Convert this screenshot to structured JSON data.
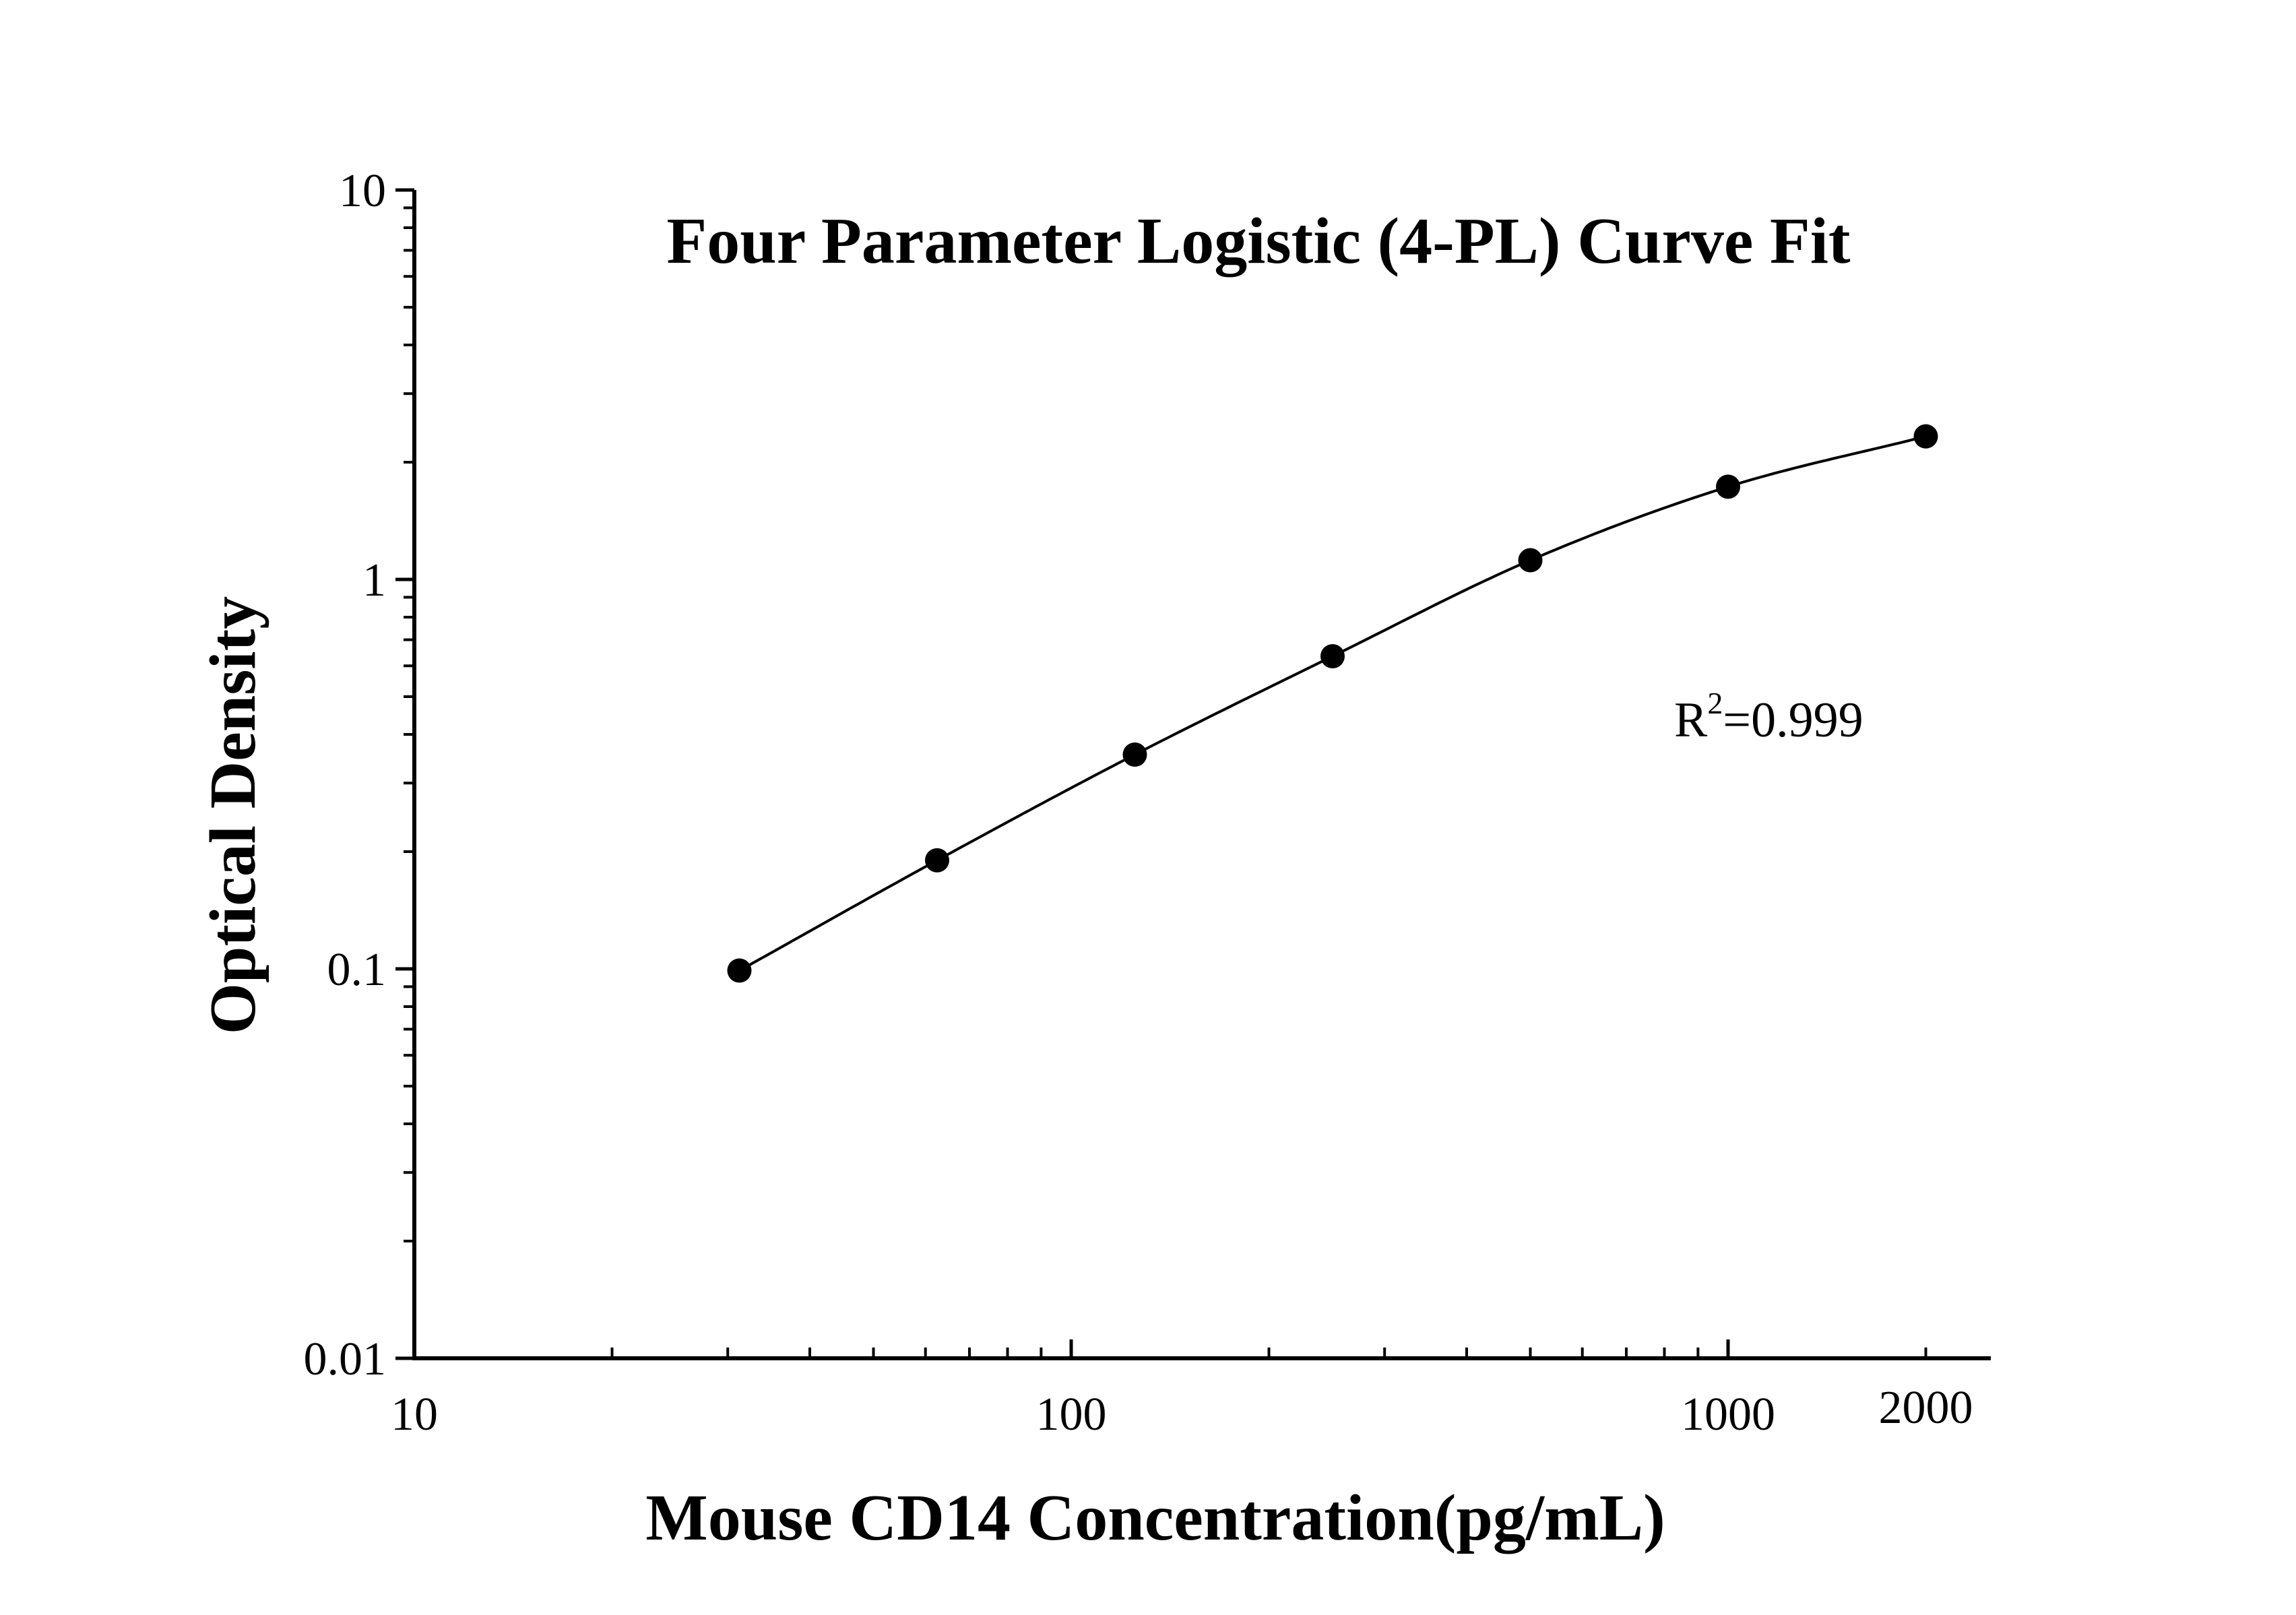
{
  "chart_data": {
    "type": "scatter",
    "title": "Four Parameter Logistic (4-PL) Curve Fit",
    "xlabel": "Mouse CD14 Concentration(pg/mL)",
    "ylabel": "Optical Density",
    "xscale": "log",
    "yscale": "log",
    "xlim": [
      10,
      2400
    ],
    "ylim": [
      0.01,
      10
    ],
    "x_ticks": [
      {
        "value": 10,
        "label": "10"
      },
      {
        "value": 100,
        "label": "100"
      },
      {
        "value": 1000,
        "label": "1000"
      },
      {
        "value": 2000,
        "label": "2000"
      }
    ],
    "y_ticks": [
      {
        "value": 0.01,
        "label": "0.01"
      },
      {
        "value": 0.1,
        "label": "0.1"
      },
      {
        "value": 1,
        "label": "1"
      },
      {
        "value": 10,
        "label": "10"
      }
    ],
    "grid": false,
    "legend": "none",
    "series": [
      {
        "points": [
          {
            "x": 31.25,
            "y": 0.099
          },
          {
            "x": 62.5,
            "y": 0.19
          },
          {
            "x": 125,
            "y": 0.355
          },
          {
            "x": 250,
            "y": 0.635
          },
          {
            "x": 500,
            "y": 1.12
          },
          {
            "x": 1000,
            "y": 1.73
          },
          {
            "x": 2000,
            "y": 2.33
          }
        ],
        "fit": "4-PL"
      }
    ],
    "annotation": {
      "base": "R",
      "sup": "2",
      "rest": "=0.999"
    },
    "colors": {
      "marker": "#000000",
      "line": "#000000",
      "axis": "#000000"
    }
  }
}
